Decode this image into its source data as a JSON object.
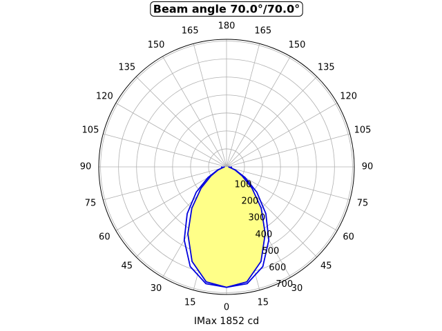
{
  "chart_data": {
    "type": "polar",
    "title": "Beam angle 70.0°/70.0°",
    "xlabel": "IMax 1852 cd",
    "xlim": [
      -180,
      180
    ],
    "xticks": [
      {
        "value": -165,
        "label": "165"
      },
      {
        "value": -150,
        "label": "150"
      },
      {
        "value": -135,
        "label": "135"
      },
      {
        "value": -120,
        "label": "120"
      },
      {
        "value": -105,
        "label": "105"
      },
      {
        "value": -90,
        "label": "90"
      },
      {
        "value": -75,
        "label": "75"
      },
      {
        "value": -60,
        "label": "60"
      },
      {
        "value": -45,
        "label": "45"
      },
      {
        "value": -30,
        "label": "30"
      },
      {
        "value": -15,
        "label": "15"
      },
      0,
      15,
      30,
      45,
      60,
      75,
      90,
      105,
      120,
      135,
      150,
      165,
      180
    ],
    "ylim": [
      0,
      710
    ],
    "yticks": [
      100,
      200,
      300,
      400,
      500,
      600,
      700
    ],
    "grid": true,
    "x": [
      -90,
      -80,
      -70,
      -60,
      -50,
      -40,
      -30,
      -20,
      -10,
      0,
      10,
      20,
      30,
      40,
      50,
      60,
      70,
      80,
      90
    ],
    "series": [
      {
        "color": "#0000dd",
        "values": [
          30,
          20,
          55,
          120,
          220,
          340,
          470,
          590,
          660,
          670,
          660,
          590,
          470,
          340,
          220,
          120,
          55,
          20,
          30
        ]
      },
      {
        "color": "#0000dd",
        "fill": "#ffff88",
        "values": [
          10,
          20,
          50,
          100,
          185,
          300,
          430,
          560,
          650,
          670,
          650,
          560,
          430,
          300,
          185,
          100,
          50,
          20,
          10
        ]
      }
    ]
  }
}
